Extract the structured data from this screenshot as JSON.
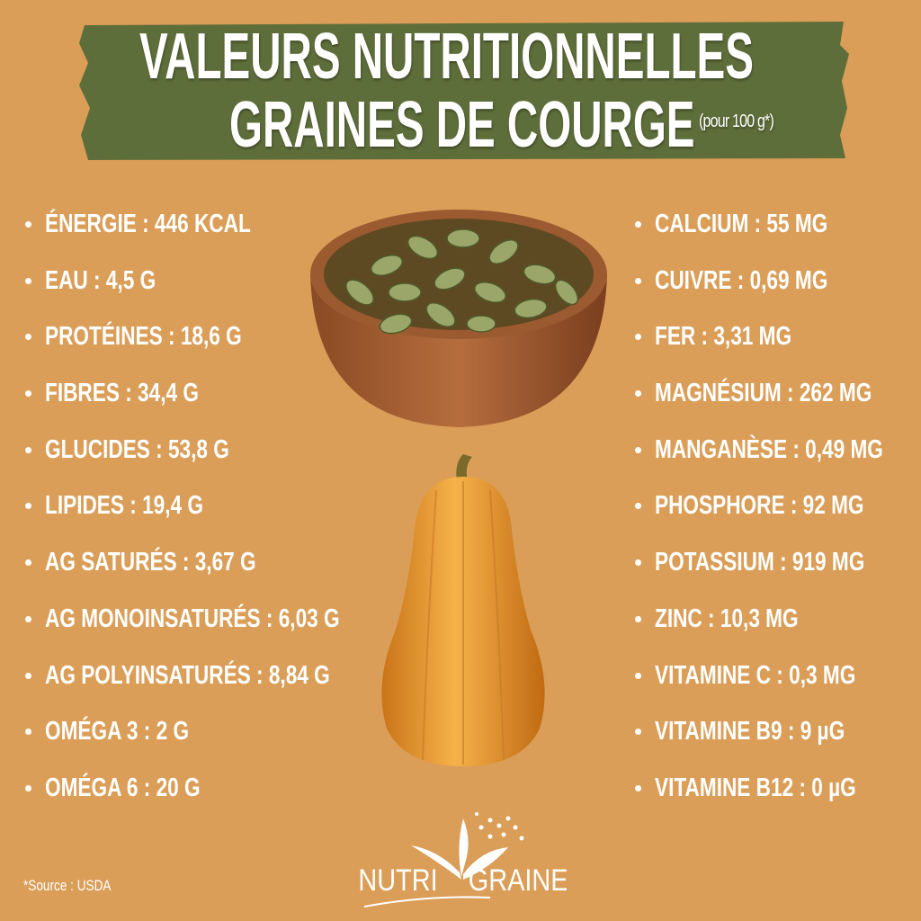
{
  "header": {
    "title_line1": "VALEURS NUTRITIONNELLES",
    "title_line2": "GRAINES DE COURGE",
    "title_note": "(pour 100 g*)"
  },
  "colors": {
    "background": "#DA9E58",
    "banner": "#5E6E3A",
    "text": "#FFFFFF"
  },
  "left_items": [
    {
      "label": "ÉNERGIE : 446 KCAL"
    },
    {
      "label": "EAU : 4,5 G"
    },
    {
      "label": "PROTÉINES : 18,6 G"
    },
    {
      "label": "FIBRES : 34,4 G"
    },
    {
      "label": "GLUCIDES : 53,8 G"
    },
    {
      "label": "LIPIDES : 19,4 G"
    },
    {
      "label": "AG SATURÉS : 3,67 G"
    },
    {
      "label": "AG MONOINSATURÉS : 6,03 G"
    },
    {
      "label": "AG POLYINSATURÉS : 8,84 G"
    },
    {
      "label": "OMÉGA 3 : 2 G"
    },
    {
      "label": "OMÉGA 6 : 20 G"
    }
  ],
  "right_items": [
    {
      "label": "CALCIUM : 55 MG"
    },
    {
      "label": "CUIVRE : 0,69 MG"
    },
    {
      "label": "FER : 3,31 MG"
    },
    {
      "label": "MAGNÉSIUM : 262 MG"
    },
    {
      "label": "MANGANÈSE : 0,49 MG"
    },
    {
      "label": "PHOSPHORE : 92 MG"
    },
    {
      "label": "POTASSIUM : 919 MG"
    },
    {
      "label": "ZINC : 10,3 MG"
    },
    {
      "label": "VITAMINE C : 0,3 MG"
    },
    {
      "label": "VITAMINE B9 :  9 µG"
    },
    {
      "label": "VITAMINE B12 : 0 µG"
    }
  ],
  "footer": {
    "source": "*Source : USDA",
    "logo_text": "NUTRI GRAINES"
  }
}
